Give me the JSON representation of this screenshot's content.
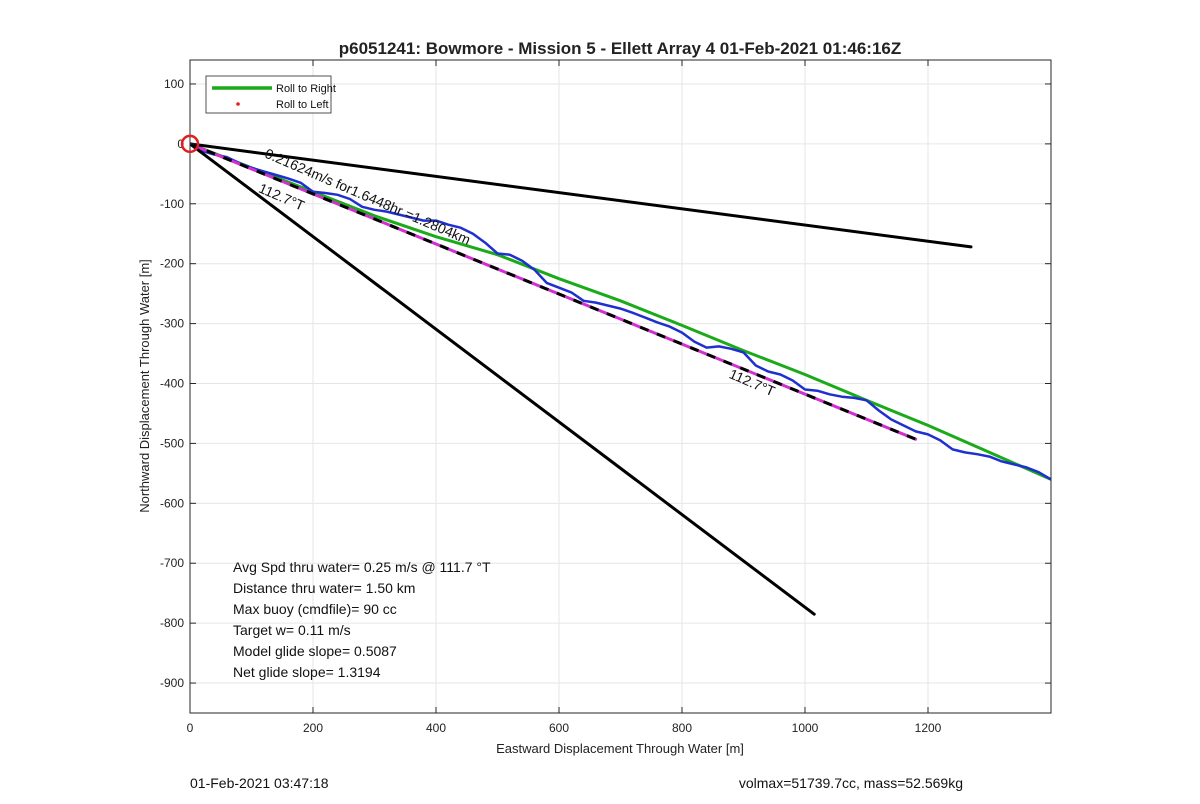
{
  "chart_data": {
    "type": "line",
    "title": "p6051241: Bowmore - Mission 5 - Ellett Array 4 01-Feb-2021 01:46:16Z",
    "xlabel": "Eastward Displacement Through Water [m]",
    "ylabel": "Northward Displacement Through Water [m]",
    "xlim": [
      0,
      1400
    ],
    "ylim": [
      -950,
      140
    ],
    "xticks": [
      0,
      200,
      400,
      600,
      800,
      1000,
      1200
    ],
    "yticks": [
      100,
      0,
      -100,
      -200,
      -300,
      -400,
      -500,
      -600,
      -700,
      -800,
      -900
    ],
    "grid": true,
    "legend": {
      "position": "top-left",
      "entries": [
        {
          "name": "Roll to Right",
          "color": "#1aaa1a",
          "style": "line"
        },
        {
          "name": "Roll to Left",
          "color": "#e0201e",
          "style": "dot"
        }
      ]
    },
    "series": [
      {
        "name": "Roll to Right",
        "color": "#1aaa1a",
        "x": [
          0,
          100,
          200,
          300,
          400,
          500,
          600,
          700,
          800,
          900,
          1000,
          1100,
          1200,
          1300,
          1400
        ],
        "y": [
          0,
          -40,
          -80,
          -120,
          -155,
          -185,
          -225,
          -262,
          -303,
          -345,
          -385,
          -428,
          -470,
          -515,
          -560
        ]
      },
      {
        "color": "#1f2fd0",
        "x": [
          0,
          20,
          40,
          60,
          80,
          100,
          120,
          140,
          160,
          180,
          200,
          220,
          240,
          260,
          280,
          300,
          320,
          340,
          360,
          380,
          400,
          420,
          440,
          460,
          480,
          500,
          520,
          540,
          560,
          580,
          600,
          620,
          640,
          660,
          680,
          700,
          720,
          740,
          760,
          780,
          800,
          820,
          840,
          860,
          880,
          900,
          920,
          940,
          960,
          980,
          1000,
          1020,
          1040,
          1060,
          1080,
          1100,
          1120,
          1140,
          1160,
          1180,
          1200,
          1220,
          1240,
          1260,
          1280,
          1300,
          1320,
          1340,
          1360,
          1380,
          1400
        ],
        "y": [
          0,
          -12,
          -18,
          -22,
          -32,
          -40,
          -46,
          -52,
          -58,
          -65,
          -80,
          -82,
          -85,
          -92,
          -105,
          -110,
          -113,
          -118,
          -123,
          -128,
          -128,
          -135,
          -140,
          -150,
          -165,
          -183,
          -185,
          -195,
          -210,
          -232,
          -240,
          -248,
          -262,
          -265,
          -270,
          -275,
          -282,
          -290,
          -298,
          -305,
          -315,
          -330,
          -340,
          -338,
          -342,
          -348,
          -370,
          -380,
          -385,
          -395,
          -410,
          -412,
          -418,
          -422,
          -424,
          -428,
          -445,
          -460,
          -470,
          -480,
          -485,
          -495,
          -510,
          -515,
          -518,
          -522,
          -530,
          -535,
          -540,
          -548,
          -560
        ]
      },
      {
        "color": "#d030d0",
        "dash_color": "#000000",
        "x": [
          0,
          1180
        ],
        "y": [
          0,
          -493
        ]
      },
      {
        "color": "#000000",
        "x": [
          0,
          1270
        ],
        "y": [
          0,
          -172
        ]
      },
      {
        "color": "#000000",
        "x": [
          0,
          1015
        ],
        "y": [
          0,
          -785
        ]
      }
    ],
    "marker": {
      "x": 0,
      "y": 0,
      "color": "#e0201e",
      "shape": "circle"
    },
    "annotations": [
      {
        "text": "0.21624m/s for1.6448hr =1.2804km",
        "x": 120,
        "y": -22,
        "angle": 23.3
      },
      {
        "text": "112.7°T",
        "x": 110,
        "y": -80,
        "angle": 23.3
      },
      {
        "text": "112.7°T",
        "x": 875,
        "y": -390,
        "angle": 23.3
      }
    ],
    "stats": [
      "Avg Spd thru water=  0.25 m/s @ 111.7 °T",
      "Distance thru water=  1.50 km",
      "Max buoy (cmdfile)= 90 cc",
      "Target w= 0.11 m/s",
      "Model glide slope= 0.5087",
      "Net glide slope= 1.3194"
    ]
  },
  "footer": {
    "left": "01-Feb-2021 03:47:18",
    "right": "volmax=51739.7cc, mass=52.569kg"
  }
}
